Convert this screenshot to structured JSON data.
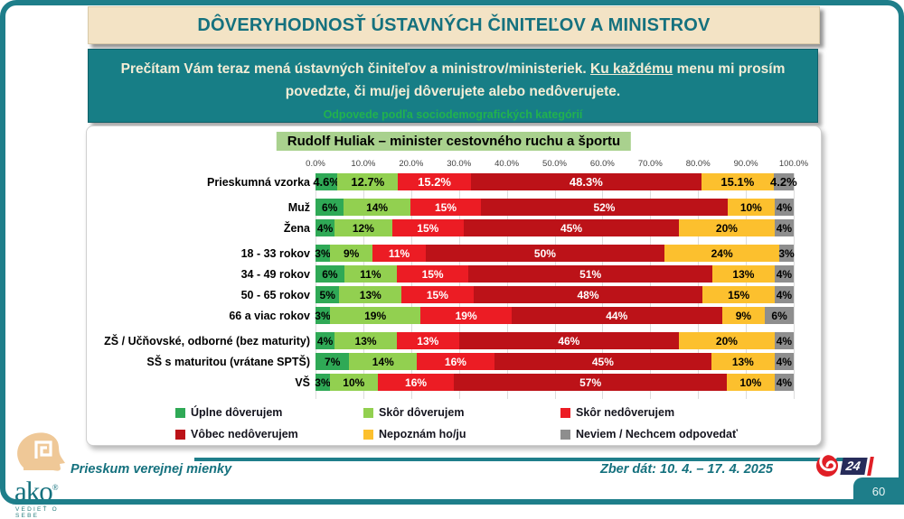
{
  "page": {
    "number": "60"
  },
  "colors": {
    "accent_teal": "#177E86",
    "frame_teal": "#1E7E8A",
    "title_bg_cream": "#F3E3C5",
    "chart_title_bg": "#A9D18E",
    "subnote_green": "#21B24E"
  },
  "header": {
    "title": "DÔVERYHODNOSŤ ÚSTAVNÝCH ČINITEĽOV A MINISTROV"
  },
  "question": {
    "line1_prefix": "Prečítam Vám teraz mená ústavných činiteľov a ministrov/ministeriek. ",
    "line1_underline": "Ku každému",
    "line1_suffix": " menu mi prosím povedzte, či mu/jej dôverujete alebo nedôverujete.",
    "subnote": "Odpovede podľa sociodemografických kategórií"
  },
  "chart_data": {
    "type": "bar",
    "stacked": true,
    "orientation": "horizontal",
    "title": "Rudolf Huliak – minister cestovného ruchu a športu",
    "x_axis": {
      "min": 0,
      "max": 100,
      "ticks": [
        "0.0%",
        "10.0%",
        "20.0%",
        "30.0%",
        "40.0%",
        "50.0%",
        "60.0%",
        "70.0%",
        "80.0%",
        "90.0%",
        "100.0%"
      ]
    },
    "grid": true,
    "legend_position": "bottom",
    "series_names": [
      "Úplne dôverujem",
      "Skôr dôverujem",
      "Skôr nedôverujem",
      "Vôbec nedôverujem",
      "Nepoznám ho/ju",
      "Neviem / Nechcem odpovedať"
    ],
    "series_colors": [
      "#2FA956",
      "#92D050",
      "#EC1C24",
      "#BC1218",
      "#FCC02E",
      "#8E8E8E"
    ],
    "series_label_colors": [
      "#000000",
      "#000000",
      "#FFFFFF",
      "#FFFFFF",
      "#000000",
      "#000000"
    ],
    "groups": [
      {
        "rows": [
          {
            "label": "Prieskumná vzorka",
            "emphasis": true,
            "values": [
              4.6,
              12.7,
              15.2,
              48.3,
              15.1,
              4.2
            ],
            "display": [
              "4.6%",
              "12.7%",
              "15.2%",
              "48.3%",
              "15.1%",
              "4.2%"
            ]
          }
        ]
      },
      {
        "rows": [
          {
            "label": "Muž",
            "values": [
              6,
              14,
              15,
              52,
              10,
              4
            ],
            "display": [
              "6%",
              "14%",
              "15%",
              "52%",
              "10%",
              "4%"
            ]
          },
          {
            "label": "Žena",
            "values": [
              4,
              12,
              15,
              45,
              20,
              4
            ],
            "display": [
              "4%",
              "12%",
              "15%",
              "45%",
              "20%",
              "4%"
            ]
          }
        ]
      },
      {
        "rows": [
          {
            "label": "18 - 33 rokov",
            "values": [
              3,
              9,
              11,
              50,
              24,
              3
            ],
            "display": [
              "3%",
              "9%",
              "11%",
              "50%",
              "24%",
              "3%"
            ]
          },
          {
            "label": "34 - 49 rokov",
            "values": [
              6,
              11,
              15,
              51,
              13,
              4
            ],
            "display": [
              "6%",
              "11%",
              "15%",
              "51%",
              "13%",
              "4%"
            ]
          },
          {
            "label": "50 - 65 rokov",
            "values": [
              5,
              13,
              15,
              48,
              15,
              4
            ],
            "display": [
              "5%",
              "13%",
              "15%",
              "48%",
              "15%",
              "4%"
            ]
          },
          {
            "label": "66 a viac rokov",
            "values": [
              3,
              19,
              19,
              44,
              9,
              6
            ],
            "display": [
              "3%",
              "19%",
              "19%",
              "44%",
              "9%",
              "6%"
            ]
          }
        ]
      },
      {
        "rows": [
          {
            "label": "ZŠ / Učňovské, odborné (bez maturity)",
            "values": [
              4,
              13,
              13,
              46,
              20,
              4
            ],
            "display": [
              "4%",
              "13%",
              "13%",
              "46%",
              "20%",
              "4%"
            ]
          },
          {
            "label": "SŠ s maturitou (vrátane SPTŠ)",
            "values": [
              7,
              14,
              16,
              45,
              13,
              4
            ],
            "display": [
              "7%",
              "14%",
              "16%",
              "45%",
              "13%",
              "4%"
            ]
          },
          {
            "label": "VŠ",
            "values": [
              3,
              10,
              16,
              57,
              10,
              4
            ],
            "display": [
              "3%",
              "10%",
              "16%",
              "57%",
              "10%",
              "4%"
            ]
          }
        ]
      }
    ]
  },
  "footer": {
    "left_text": "Prieskum verejnej mienky",
    "collection_text": "Zber dát: 10. 4. – 17. 4. 2025",
    "channel_number": "24",
    "logo_text": "ako",
    "logo_reg": "®",
    "logo_tagline": "VEDIEŤ O SEBE"
  }
}
